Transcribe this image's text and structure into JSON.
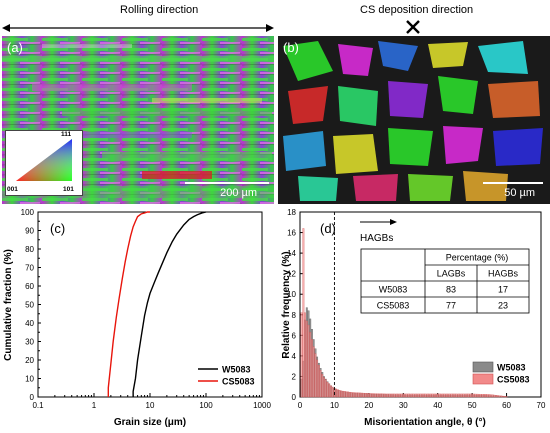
{
  "headers": {
    "rolling": "Rolling direction",
    "cs": "CS deposition direction"
  },
  "panel_a": {
    "label": "(a)",
    "scale": "200 µm",
    "ipf": {
      "top": "111",
      "left": "001",
      "right": "101"
    }
  },
  "panel_b": {
    "label": "(b)",
    "scale": "50 µm"
  },
  "colors": {
    "w5083": "#000000",
    "cs5083": "#e8150c",
    "w5083_bar": "#8a8a8a",
    "cs5083_bar": "#f28a8a"
  },
  "chart_data": [
    {
      "type": "line",
      "panel": "(c)",
      "xlabel": "Grain size (μm)",
      "ylabel": "Cumulative fraction (%)",
      "xscale": "log",
      "xlim": [
        0.1,
        1000
      ],
      "ylim": [
        0,
        100
      ],
      "xticks": [
        "0.1",
        "1",
        "10",
        "100",
        "1000"
      ],
      "yticks": [
        "0",
        "10",
        "20",
        "30",
        "40",
        "50",
        "60",
        "70",
        "80",
        "90",
        "100"
      ],
      "legend_position": "bottom-right",
      "series": [
        {
          "name": "W5083",
          "color": "#000000",
          "x": [
            5,
            5,
            5.5,
            6,
            7,
            8,
            9,
            10,
            12,
            14,
            17,
            20,
            25,
            30,
            40,
            50,
            60,
            70,
            85,
            100
          ],
          "y": [
            0,
            3,
            10,
            20,
            33,
            44,
            51,
            56,
            62,
            67,
            73,
            78,
            84,
            88,
            93,
            96,
            97.5,
            98.5,
            99.5,
            100
          ]
        },
        {
          "name": "CS5083",
          "color": "#e8150c",
          "x": [
            1.8,
            1.8,
            2,
            2.2,
            2.5,
            2.8,
            3.2,
            3.6,
            4,
            4.5,
            5,
            5.5,
            6,
            7,
            8,
            9,
            10
          ],
          "y": [
            0,
            5,
            18,
            30,
            43,
            53,
            64,
            73,
            80,
            87,
            92,
            95,
            97.5,
            99,
            99.5,
            100,
            100
          ]
        }
      ]
    },
    {
      "type": "bar",
      "panel": "(d)",
      "xlabel": "Misorientation angle, θ (°)",
      "ylabel": "Relative frequency (%)",
      "xlim": [
        0,
        70
      ],
      "ylim": [
        0,
        18
      ],
      "xticks": [
        "0",
        "10",
        "20",
        "30",
        "40",
        "50",
        "60",
        "70"
      ],
      "yticks": [
        "0",
        "2",
        "4",
        "6",
        "8",
        "10",
        "12",
        "14",
        "16",
        "18"
      ],
      "bin_width": 0.5,
      "hagb_threshold": 10,
      "arrow_label": "HAGBs",
      "legend_position": "bottom-right",
      "series": [
        {
          "name": "W5083",
          "color": "#8a8a8a",
          "x": [
            1,
            1.5,
            2,
            2.5,
            3,
            3.5,
            4,
            4.5,
            5,
            5.5,
            6,
            6.5,
            7,
            8,
            9,
            10,
            12,
            15,
            20,
            25,
            30,
            40,
            50,
            55,
            60
          ],
          "y": [
            3.5,
            7.5,
            8.7,
            8.4,
            7.6,
            6.6,
            5.6,
            4.7,
            3.9,
            3.3,
            2.8,
            2.4,
            2.0,
            1.5,
            1.1,
            0.8,
            0.55,
            0.4,
            0.3,
            0.25,
            0.2,
            0.2,
            0.2,
            0.15,
            0.05
          ]
        },
        {
          "name": "CS5083",
          "color": "#f28a8a",
          "x": [
            1,
            1.5,
            2,
            2.5,
            3,
            3.5,
            4,
            4.5,
            5,
            5.5,
            6,
            6.5,
            7,
            8,
            9,
            10,
            12,
            15,
            20,
            25,
            30,
            40,
            50,
            55,
            60
          ],
          "y": [
            16.4,
            8.2,
            7.4,
            7.0,
            6.3,
            5.6,
            4.9,
            4.2,
            3.6,
            3.1,
            2.6,
            2.2,
            1.9,
            1.45,
            1.1,
            0.85,
            0.6,
            0.45,
            0.35,
            0.3,
            0.3,
            0.3,
            0.3,
            0.25,
            0.05
          ]
        }
      ],
      "table": {
        "header": "Percentage (%)",
        "columns": [
          "",
          "LAGBs",
          "HAGBs"
        ],
        "rows": [
          [
            "W5083",
            "83",
            "17"
          ],
          [
            "CS5083",
            "77",
            "23"
          ]
        ]
      }
    }
  ]
}
